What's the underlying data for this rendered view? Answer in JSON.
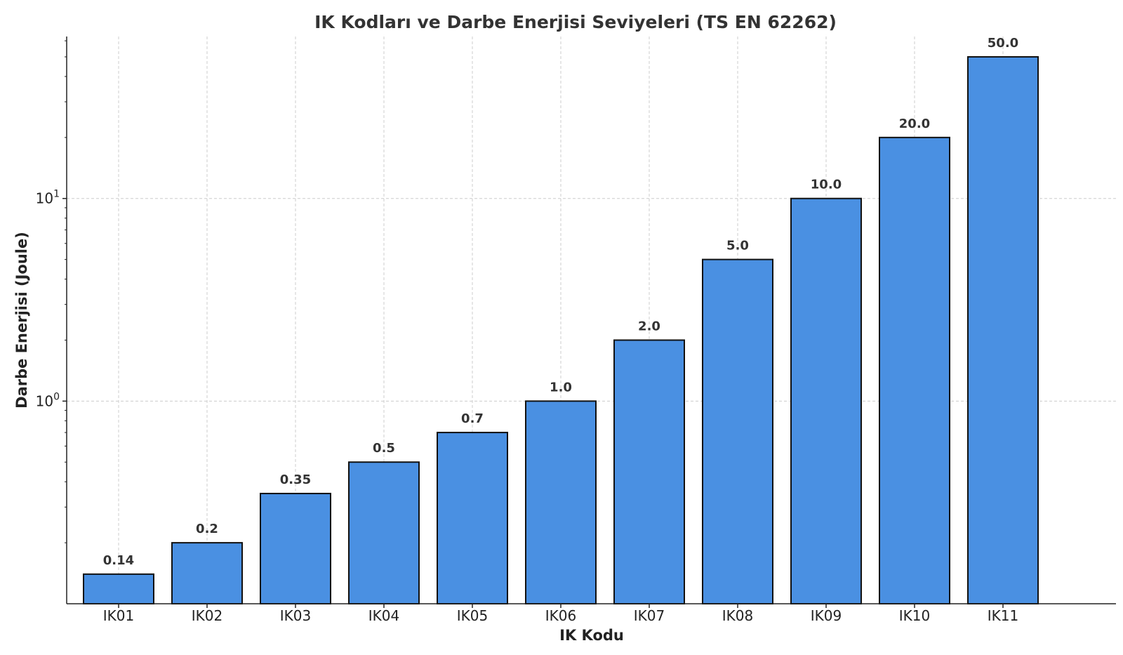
{
  "chart_data": {
    "type": "bar",
    "title": "IK Kodları ve Darbe Enerjisi Seviyeleri (TS EN 62262)",
    "xlabel": "IK Kodu",
    "ylabel": "Darbe Enerjisi (Joule)",
    "yscale": "log",
    "ylim": [
      0.1,
      63
    ],
    "grid": true,
    "bar_color": "#4a90e2",
    "edge_color": "#111111",
    "categories": [
      "IK01",
      "IK02",
      "IK03",
      "IK04",
      "IK05",
      "IK06",
      "IK07",
      "IK08",
      "IK09",
      "IK10",
      "IK11"
    ],
    "values": [
      0.14,
      0.2,
      0.35,
      0.5,
      0.7,
      1.0,
      2.0,
      5.0,
      10.0,
      20.0,
      50.0
    ],
    "value_labels": [
      "0.14",
      "0.2",
      "0.35",
      "0.5",
      "0.7",
      "1.0",
      "2.0",
      "5.0",
      "10.0",
      "20.0",
      "50.0"
    ],
    "y_ticks": [
      {
        "value": 1,
        "base": "10",
        "exp": "0"
      },
      {
        "value": 10,
        "base": "10",
        "exp": "1"
      }
    ]
  }
}
